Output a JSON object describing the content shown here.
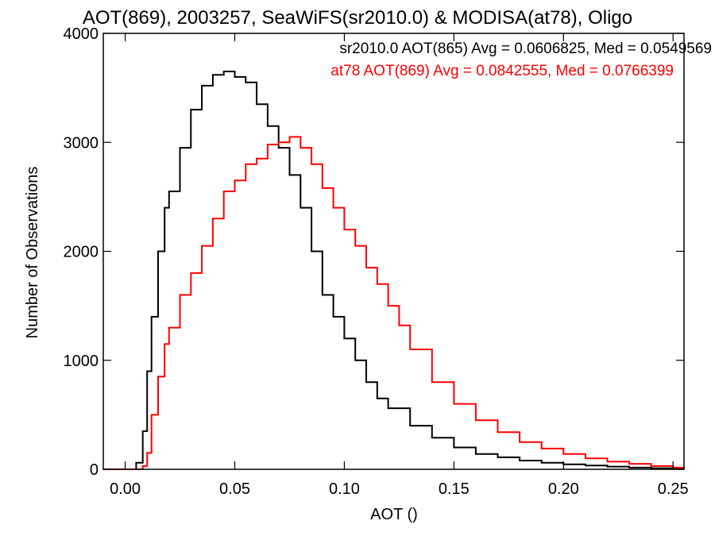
{
  "chart_data": {
    "type": "line",
    "title": "AOT(869), 2003257, SeaWiFS(sr2010.0) & MODISA(at78), Oligo",
    "xlabel": "AOT ()",
    "ylabel": "Number of Observations",
    "xlim": [
      -0.01,
      0.255
    ],
    "ylim": [
      0,
      4000
    ],
    "xticks": [
      0.0,
      0.05,
      0.1,
      0.15,
      0.2,
      0.25
    ],
    "xtick_labels": [
      "0.00",
      "0.05",
      "0.10",
      "0.15",
      "0.20",
      "0.25"
    ],
    "yticks": [
      0,
      1000,
      2000,
      3000,
      4000
    ],
    "ytick_labels": [
      "0",
      "1000",
      "2000",
      "3000",
      "4000"
    ],
    "grid": false,
    "legend_position": "top-right",
    "series": [
      {
        "name": "sr2010.0 AOT(865) Avg = 0.0606825, Med = 0.0549569",
        "color": "#000000",
        "x": [
          -0.01,
          0.0,
          0.003,
          0.005,
          0.008,
          0.01,
          0.012,
          0.015,
          0.018,
          0.02,
          0.025,
          0.03,
          0.035,
          0.04,
          0.045,
          0.05,
          0.055,
          0.06,
          0.065,
          0.07,
          0.075,
          0.08,
          0.085,
          0.09,
          0.095,
          0.1,
          0.105,
          0.11,
          0.115,
          0.12,
          0.13,
          0.14,
          0.15,
          0.16,
          0.17,
          0.18,
          0.19,
          0.2,
          0.21,
          0.22,
          0.23,
          0.24,
          0.25,
          0.255
        ],
        "y": [
          0,
          0,
          0,
          60,
          350,
          900,
          1400,
          2000,
          2400,
          2550,
          2950,
          3300,
          3520,
          3620,
          3650,
          3600,
          3550,
          3350,
          3150,
          2950,
          2700,
          2400,
          2000,
          1600,
          1400,
          1200,
          1000,
          800,
          650,
          560,
          400,
          290,
          200,
          140,
          110,
          80,
          60,
          45,
          35,
          25,
          15,
          10,
          5,
          0
        ]
      },
      {
        "name": "at78 AOT(869) Avg = 0.0842555, Med = 0.0766399",
        "color": "#ff0000",
        "x": [
          -0.01,
          0.0,
          0.005,
          0.008,
          0.01,
          0.012,
          0.015,
          0.018,
          0.02,
          0.025,
          0.03,
          0.035,
          0.04,
          0.045,
          0.05,
          0.055,
          0.06,
          0.065,
          0.07,
          0.075,
          0.08,
          0.085,
          0.09,
          0.095,
          0.1,
          0.105,
          0.11,
          0.115,
          0.12,
          0.125,
          0.13,
          0.14,
          0.15,
          0.16,
          0.17,
          0.18,
          0.19,
          0.2,
          0.21,
          0.22,
          0.23,
          0.24,
          0.25,
          0.255
        ],
        "y": [
          0,
          0,
          0,
          30,
          150,
          500,
          850,
          1150,
          1300,
          1600,
          1800,
          2050,
          2300,
          2550,
          2650,
          2800,
          2850,
          2980,
          3000,
          3050,
          2950,
          2800,
          2580,
          2400,
          2200,
          2050,
          1850,
          1700,
          1500,
          1320,
          1100,
          800,
          600,
          450,
          340,
          250,
          190,
          140,
          100,
          70,
          50,
          30,
          15,
          5
        ]
      }
    ]
  }
}
